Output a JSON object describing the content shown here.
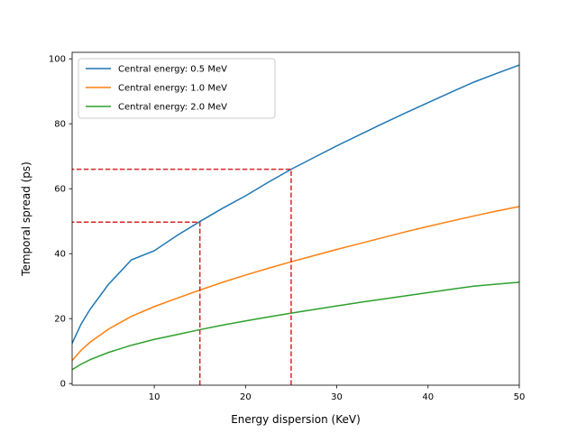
{
  "chart_data": {
    "type": "line",
    "title": "",
    "xlabel": "Energy dispersion (KeV)",
    "ylabel": "Temporal spread (ps)",
    "xlim": [
      1,
      50
    ],
    "ylim": [
      -0.5,
      102
    ],
    "xticks": [
      10,
      20,
      30,
      40,
      50
    ],
    "yticks": [
      0,
      20,
      40,
      60,
      80,
      100
    ],
    "grid": false,
    "legend_position": "top-left",
    "series": [
      {
        "name": "Central energy: 0.5 MeV",
        "color": "#1f77b4",
        "x": [
          1,
          2,
          3,
          5,
          7.5,
          10,
          12.5,
          15,
          17.5,
          20,
          22.5,
          25,
          27.5,
          30,
          32.5,
          35,
          37.5,
          40,
          42.5,
          45,
          47.5,
          50
        ],
        "y": [
          12.4,
          18.4,
          23.0,
          30.6,
          38.1,
          40.9,
          45.6,
          49.9,
          54.0,
          57.8,
          62.0,
          66.0,
          69.6,
          73.2,
          76.6,
          80.0,
          83.3,
          86.5,
          89.7,
          92.8,
          95.5,
          98.1
        ]
      },
      {
        "name": "Central energy: 1.0 MeV",
        "color": "#ff7f0e",
        "x": [
          1,
          2,
          3,
          5,
          7.5,
          10,
          12.5,
          15,
          17.5,
          20,
          22.5,
          25,
          27.5,
          30,
          32.5,
          35,
          37.5,
          40,
          42.5,
          45,
          47.5,
          50
        ],
        "y": [
          7.1,
          10.3,
          12.8,
          16.8,
          20.7,
          23.7,
          26.3,
          28.8,
          31.2,
          33.4,
          35.5,
          37.5,
          39.4,
          41.3,
          43.1,
          44.9,
          46.7,
          48.4,
          50.0,
          51.6,
          53.1,
          54.5
        ]
      },
      {
        "name": "Central energy: 2.0 MeV",
        "color": "#2ca02c",
        "x": [
          1,
          2,
          3,
          5,
          7.5,
          10,
          12.5,
          15,
          17.5,
          20,
          22.5,
          25,
          27.5,
          30,
          32.5,
          35,
          37.5,
          40,
          42.5,
          45,
          47.5,
          50
        ],
        "y": [
          4.3,
          6.0,
          7.4,
          9.6,
          11.8,
          13.6,
          15.1,
          16.6,
          18.0,
          19.3,
          20.5,
          21.7,
          22.8,
          23.9,
          25.0,
          26.0,
          27.0,
          28.0,
          29.0,
          30.0,
          30.6,
          31.2
        ]
      }
    ],
    "annotations": [
      {
        "name": "marker-15kev",
        "x": 15,
        "y": 49.7,
        "color": "#d62728",
        "style": "dashed"
      },
      {
        "name": "marker-25kev",
        "x": 25,
        "y": 66.0,
        "color": "#d62728",
        "style": "dashed"
      }
    ]
  }
}
